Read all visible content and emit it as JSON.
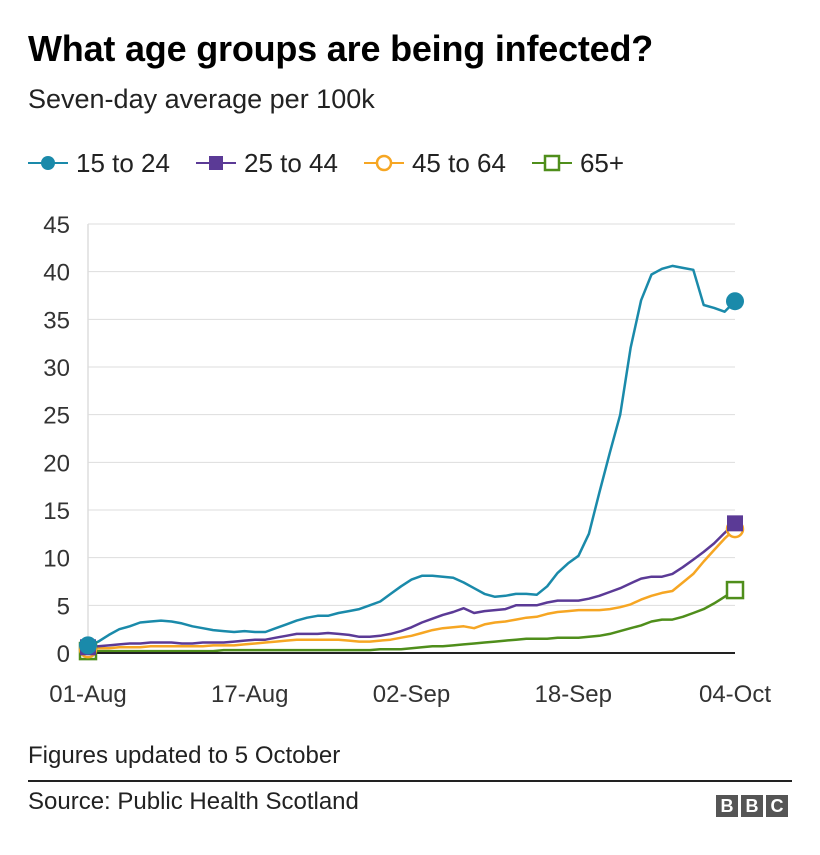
{
  "header": {
    "title": "What age groups are being infected?",
    "subtitle": "Seven-day average per 100k"
  },
  "footer": {
    "note": "Figures updated to 5 October",
    "source": "Source: Public Health Scotland",
    "logo_letters": [
      "B",
      "B",
      "C"
    ]
  },
  "colors": {
    "15_to_24": "#1a8aaa",
    "25_to_44": "#5b3a96",
    "45_to_64": "#f6a623",
    "65_plus": "#4f8e1b",
    "grid": "#dddddd",
    "zero_line": "#222222"
  },
  "chart_data": {
    "type": "line",
    "title": "What age groups are being infected?",
    "subtitle": "Seven-day average per 100k",
    "xlabel": "",
    "ylabel": "",
    "ylim": [
      0,
      45
    ],
    "yticks": [
      "0",
      "5",
      "10",
      "15",
      "20",
      "25",
      "30",
      "35",
      "40",
      "45"
    ],
    "xtick_labels": [
      "01-Aug",
      "17-Aug",
      "02-Sep",
      "18-Sep",
      "04-Oct"
    ],
    "x_start": "01-Aug",
    "x_end": "04-Oct",
    "grid": true,
    "legend_position": "top-left",
    "series": [
      {
        "name": "15 to 24",
        "marker": "filled-circle",
        "values": [
          0.8,
          1.2,
          1.9,
          2.5,
          2.8,
          3.2,
          3.3,
          3.4,
          3.3,
          3.1,
          2.8,
          2.6,
          2.4,
          2.3,
          2.2,
          2.3,
          2.2,
          2.2,
          2.6,
          3.0,
          3.4,
          3.7,
          3.9,
          3.9,
          4.2,
          4.4,
          4.6,
          5.0,
          5.4,
          6.2,
          7.0,
          7.7,
          8.1,
          8.1,
          8.0,
          7.9,
          7.4,
          6.8,
          6.2,
          5.9,
          6.0,
          6.2,
          6.2,
          6.1,
          7.0,
          8.4,
          9.4,
          10.2,
          12.5,
          16.8,
          21.0,
          25.0,
          32.0,
          37.0,
          39.7,
          40.3,
          40.6,
          40.4,
          40.2,
          36.5,
          36.2,
          35.8,
          36.9
        ]
      },
      {
        "name": "25 to 44",
        "marker": "filled-square",
        "values": [
          0.6,
          0.7,
          0.8,
          0.9,
          1.0,
          1.0,
          1.1,
          1.1,
          1.1,
          1.0,
          1.0,
          1.1,
          1.1,
          1.1,
          1.2,
          1.3,
          1.4,
          1.4,
          1.6,
          1.8,
          2.0,
          2.0,
          2.0,
          2.1,
          2.0,
          1.9,
          1.7,
          1.7,
          1.8,
          2.0,
          2.3,
          2.7,
          3.2,
          3.6,
          4.0,
          4.3,
          4.7,
          4.2,
          4.4,
          4.5,
          4.6,
          5.0,
          5.0,
          5.0,
          5.3,
          5.5,
          5.5,
          5.5,
          5.7,
          6.0,
          6.4,
          6.8,
          7.3,
          7.8,
          8.0,
          8.0,
          8.3,
          9.0,
          9.8,
          10.6,
          11.5,
          12.6,
          13.6
        ]
      },
      {
        "name": "45 to 64",
        "marker": "open-circle",
        "values": [
          0.4,
          0.5,
          0.5,
          0.6,
          0.6,
          0.6,
          0.7,
          0.7,
          0.7,
          0.7,
          0.7,
          0.7,
          0.8,
          0.8,
          0.8,
          0.9,
          1.0,
          1.1,
          1.2,
          1.3,
          1.4,
          1.4,
          1.4,
          1.4,
          1.4,
          1.3,
          1.2,
          1.2,
          1.3,
          1.4,
          1.6,
          1.8,
          2.1,
          2.4,
          2.6,
          2.7,
          2.8,
          2.6,
          3.0,
          3.2,
          3.3,
          3.5,
          3.7,
          3.8,
          4.1,
          4.3,
          4.4,
          4.5,
          4.5,
          4.5,
          4.6,
          4.8,
          5.1,
          5.6,
          6.0,
          6.3,
          6.5,
          7.4,
          8.3,
          9.6,
          10.8,
          12.0,
          13.0
        ]
      },
      {
        "name": "65+",
        "marker": "open-square",
        "values": [
          0.2,
          0.2,
          0.2,
          0.2,
          0.2,
          0.2,
          0.2,
          0.2,
          0.2,
          0.2,
          0.2,
          0.2,
          0.2,
          0.3,
          0.3,
          0.3,
          0.3,
          0.3,
          0.3,
          0.3,
          0.3,
          0.3,
          0.3,
          0.3,
          0.3,
          0.3,
          0.3,
          0.3,
          0.4,
          0.4,
          0.4,
          0.5,
          0.6,
          0.7,
          0.7,
          0.8,
          0.9,
          1.0,
          1.1,
          1.2,
          1.3,
          1.4,
          1.5,
          1.5,
          1.5,
          1.6,
          1.6,
          1.6,
          1.7,
          1.8,
          2.0,
          2.3,
          2.6,
          2.9,
          3.3,
          3.5,
          3.5,
          3.8,
          4.2,
          4.6,
          5.2,
          5.9,
          6.6
        ]
      }
    ]
  }
}
